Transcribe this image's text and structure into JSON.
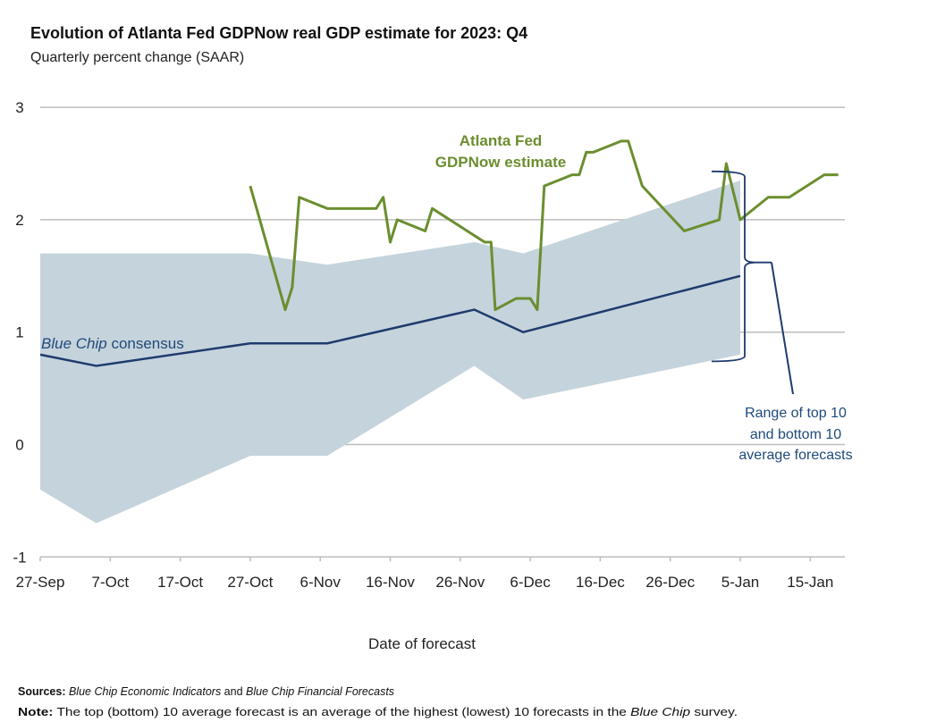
{
  "colors": {
    "gdpnow": "#6b8e2f",
    "consensus": "#1f3b6e",
    "band": "#c5d3dc",
    "grid": "#bdbdbd"
  },
  "chart_data": {
    "type": "line",
    "title": "Evolution of Atlanta Fed GDPNow real GDP estimate for 2023: Q4",
    "subtitle": "Quarterly percent change (SAAR)",
    "xlabel": "Date of forecast",
    "ylabel": "",
    "x_unit": "days since 27-Sep-2023",
    "xlim": [
      0,
      115
    ],
    "ylim": [
      -1,
      3
    ],
    "yticks": [
      3,
      2,
      1,
      0,
      -1
    ],
    "xticks": [
      {
        "day": 0,
        "label": "27-Sep"
      },
      {
        "day": 10,
        "label": "7-Oct"
      },
      {
        "day": 20,
        "label": "17-Oct"
      },
      {
        "day": 30,
        "label": "27-Oct"
      },
      {
        "day": 40,
        "label": "6-Nov"
      },
      {
        "day": 50,
        "label": "16-Nov"
      },
      {
        "day": 60,
        "label": "26-Nov"
      },
      {
        "day": 70,
        "label": "6-Dec"
      },
      {
        "day": 80,
        "label": "16-Dec"
      },
      {
        "day": 90,
        "label": "26-Dec"
      },
      {
        "day": 100,
        "label": "5-Jan"
      },
      {
        "day": 110,
        "label": "15-Jan"
      }
    ],
    "grid": true,
    "band": {
      "name": "Range of top 10 and bottom 10 average forecasts",
      "upper": [
        [
          0,
          1.7
        ],
        [
          30,
          1.7
        ],
        [
          41,
          1.6
        ],
        [
          62,
          1.8
        ],
        [
          69,
          1.7
        ],
        [
          100,
          2.35
        ]
      ],
      "lower": [
        [
          0,
          -0.4
        ],
        [
          8,
          -0.7
        ],
        [
          30,
          -0.1
        ],
        [
          41,
          -0.1
        ],
        [
          62,
          0.7
        ],
        [
          69,
          0.4
        ],
        [
          100,
          0.8
        ]
      ]
    },
    "series": [
      {
        "name": "Blue Chip consensus",
        "points": [
          [
            0,
            0.8
          ],
          [
            8,
            0.7
          ],
          [
            30,
            0.9
          ],
          [
            41,
            0.9
          ],
          [
            62,
            1.2
          ],
          [
            69,
            1.0
          ],
          [
            100,
            1.5
          ]
        ]
      },
      {
        "name": "Atlanta Fed GDPNow estimate",
        "points": [
          [
            30,
            2.3
          ],
          [
            35,
            1.2
          ],
          [
            36,
            1.4
          ],
          [
            37,
            2.2
          ],
          [
            41,
            2.1
          ],
          [
            48,
            2.1
          ],
          [
            49,
            2.2
          ],
          [
            50,
            1.8
          ],
          [
            51,
            2.0
          ],
          [
            55,
            1.9
          ],
          [
            56,
            2.1
          ],
          [
            61,
            1.9
          ],
          [
            63.5,
            1.8
          ],
          [
            64.4,
            1.8
          ],
          [
            65,
            1.2
          ],
          [
            68,
            1.3
          ],
          [
            70,
            1.3
          ],
          [
            71,
            1.2
          ],
          [
            72,
            2.3
          ],
          [
            76,
            2.4
          ],
          [
            77,
            2.4
          ],
          [
            78,
            2.6
          ],
          [
            79,
            2.6
          ],
          [
            83,
            2.7
          ],
          [
            84,
            2.7
          ],
          [
            86,
            2.3
          ],
          [
            92,
            1.9
          ],
          [
            97,
            2.0
          ],
          [
            98,
            2.5
          ],
          [
            100,
            2.0
          ],
          [
            104,
            2.2
          ],
          [
            107,
            2.2
          ],
          [
            112,
            2.4
          ],
          [
            114,
            2.4
          ]
        ]
      }
    ],
    "annotations": {
      "gdpnow_line1": "Atlanta Fed",
      "gdpnow_line2": "GDPNow estimate",
      "consensus_italic": "Blue Chip",
      "consensus_rest": " consensus",
      "range_line1": "Range of top 10",
      "range_line2": "and bottom 10",
      "range_line3": "average forecasts"
    }
  },
  "footer": {
    "sources_label": "Sources:",
    "sources_italic1": " Blue Chip Economic Indicators",
    "sources_mid": " and ",
    "sources_italic2": "Blue Chip Financial Forecasts",
    "note_label": "Note:",
    "note_text1": " The top (bottom) 10 average forecast is an average of the highest (lowest) 10 forecasts in the ",
    "note_italic": "Blue Chip",
    "note_text2": " survey."
  }
}
